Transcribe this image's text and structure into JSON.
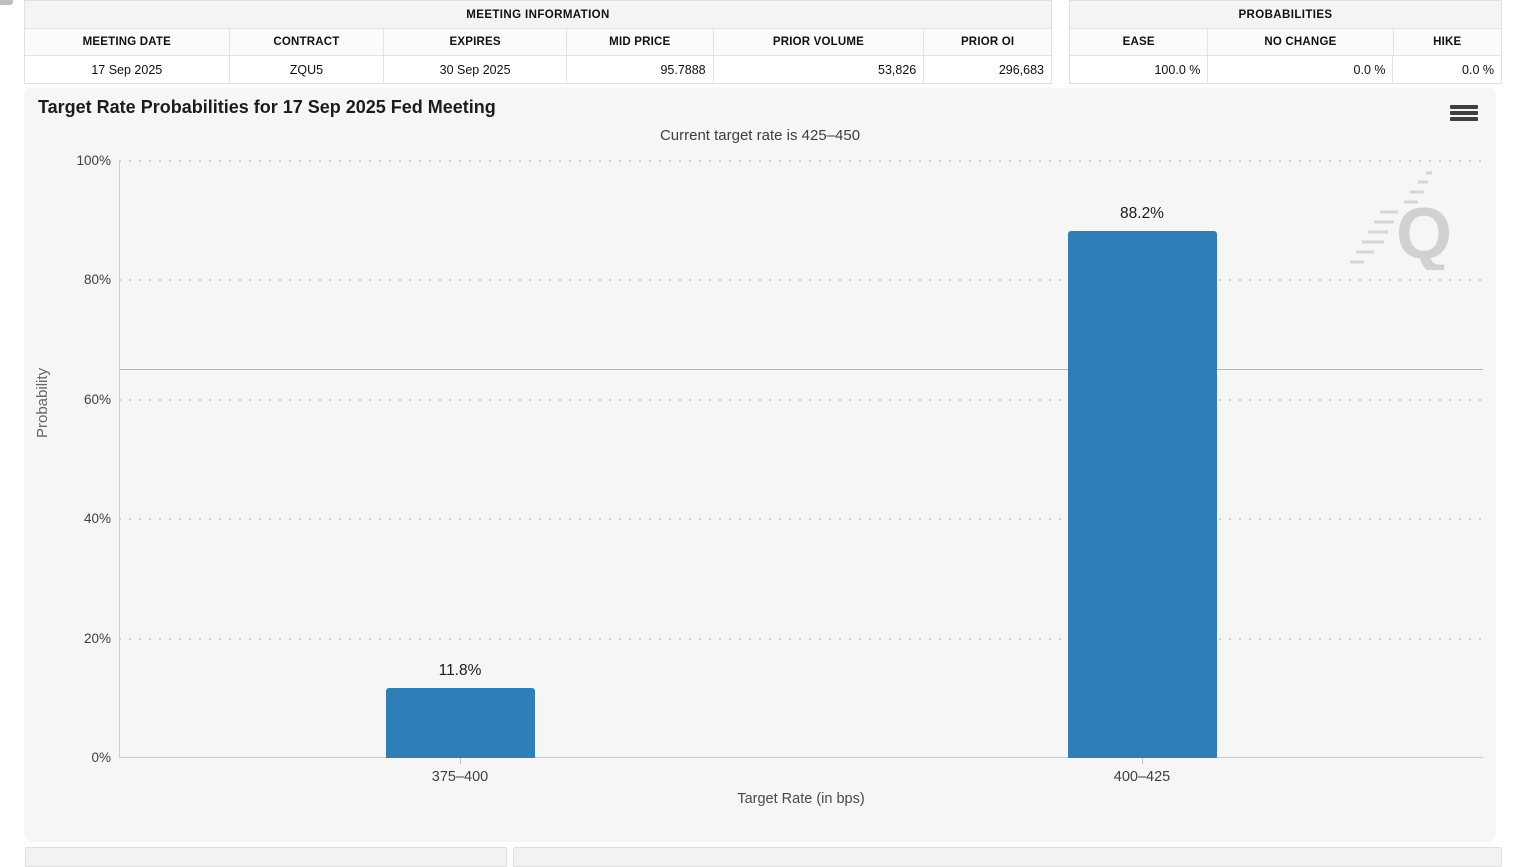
{
  "meeting_info_table": {
    "title": "MEETING INFORMATION",
    "columns": [
      "MEETING DATE",
      "CONTRACT",
      "EXPIRES",
      "MID PRICE",
      "PRIOR VOLUME",
      "PRIOR OI"
    ],
    "row": [
      "17 Sep 2025",
      "ZQU5",
      "30 Sep 2025",
      "95.7888",
      "53,826",
      "296,683"
    ]
  },
  "probabilities_table": {
    "title": "PROBABILITIES",
    "columns": [
      "EASE",
      "NO CHANGE",
      "HIKE"
    ],
    "row": [
      "100.0 %",
      "0.0 %",
      "0.0 %"
    ]
  },
  "chart": {
    "menu_icon": "hamburger-icon",
    "watermark_letter": "Q"
  },
  "chart_data": {
    "type": "bar",
    "title": "Target Rate Probabilities for 17 Sep 2025 Fed Meeting",
    "subtitle": "Current target rate is 425–450",
    "categories": [
      "375–400",
      "400–425"
    ],
    "values": [
      11.8,
      88.2
    ],
    "data_labels": [
      "11.8%",
      "88.2%"
    ],
    "xlabel": "Target Rate (in bps)",
    "ylabel": "Probability",
    "ylim": [
      0,
      100
    ],
    "ytick_values": [
      0,
      20,
      40,
      60,
      80,
      100
    ],
    "ytick_labels": [
      "0%",
      "20%",
      "40%",
      "60%",
      "80%",
      "100%"
    ],
    "grid": "dotted horizontal",
    "legend": "none",
    "reference_line_y": 65.2,
    "bar_color": "#2e7eb8"
  },
  "colors": {
    "bar_blue": "#2e7eb8",
    "panel_bg": "#f6f6f7",
    "grid_dot": "#cecfd3",
    "axis_line": "#c9cacd",
    "table_border": "#e0e0e3"
  }
}
